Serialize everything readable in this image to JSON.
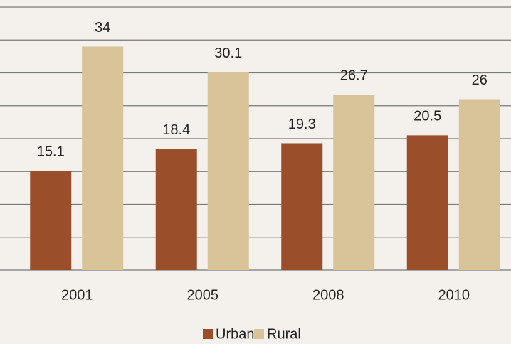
{
  "chart_data": {
    "type": "bar",
    "categories": [
      "2001",
      "2005",
      "2008",
      "2010"
    ],
    "series": [
      {
        "name": "Urban",
        "color": "#9a4f2a",
        "values": [
          15.1,
          18.4,
          19.3,
          20.5
        ]
      },
      {
        "name": "Rural",
        "color": "#d9c49a",
        "values": [
          34,
          30.1,
          26.7,
          26
        ]
      }
    ],
    "ylim": [
      0,
      40
    ],
    "yticks": [
      0,
      5,
      10,
      15,
      20,
      25,
      30,
      35,
      40
    ],
    "grid": true,
    "legend": "bottom"
  }
}
